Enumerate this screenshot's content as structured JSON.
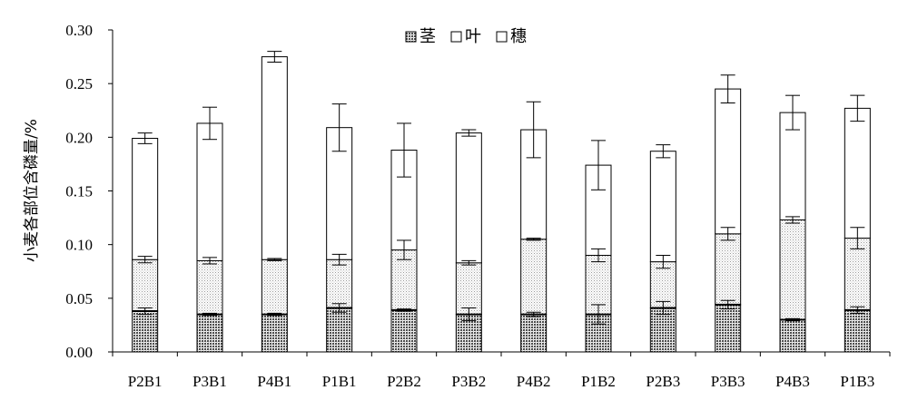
{
  "chart_data": {
    "type": "bar",
    "stacked": true,
    "categories": [
      "P2B1",
      "P3B1",
      "P4B1",
      "P1B1",
      "P2B2",
      "P3B2",
      "P4B2",
      "P1B2",
      "P2B3",
      "P3B3",
      "P4B3",
      "P1B3"
    ],
    "series": [
      {
        "name": "茎",
        "pattern": "dense-dots",
        "values": [
          0.038,
          0.035,
          0.035,
          0.041,
          0.039,
          0.035,
          0.035,
          0.035,
          0.041,
          0.044,
          0.03,
          0.039
        ],
        "errors": [
          0.003,
          0.001,
          0.001,
          0.004,
          0.001,
          0.006,
          0.002,
          0.009,
          0.006,
          0.004,
          0.001,
          0.003
        ]
      },
      {
        "name": "叶",
        "pattern": "light-dots",
        "values": [
          0.048,
          0.05,
          0.051,
          0.045,
          0.056,
          0.048,
          0.07,
          0.055,
          0.043,
          0.066,
          0.093,
          0.067
        ],
        "errors": [
          0.003,
          0.003,
          0.001,
          0.005,
          0.009,
          0.002,
          0.001,
          0.006,
          0.006,
          0.006,
          0.003,
          0.01
        ]
      },
      {
        "name": "穗",
        "pattern": "none",
        "values": [
          0.113,
          0.128,
          0.189,
          0.123,
          0.093,
          0.121,
          0.102,
          0.084,
          0.103,
          0.135,
          0.1,
          0.121
        ],
        "errors": [
          0.005,
          0.015,
          0.005,
          0.022,
          0.025,
          0.003,
          0.026,
          0.023,
          0.006,
          0.013,
          0.016,
          0.012
        ]
      }
    ],
    "ylabel": "小麦各部位含磷量/%",
    "xlabel": "",
    "ylim": [
      0,
      0.3
    ],
    "yticks": [
      "0.00",
      "0.05",
      "0.10",
      "0.15",
      "0.20",
      "0.25",
      "0.30"
    ],
    "grid": false,
    "legend": "top-center"
  },
  "colors": {
    "axis": "#000000",
    "bar_outline": "#000000",
    "stem_fill": "#6e6e6e",
    "leaf_fill": "#c8c8c8",
    "background": "#ffffff"
  }
}
